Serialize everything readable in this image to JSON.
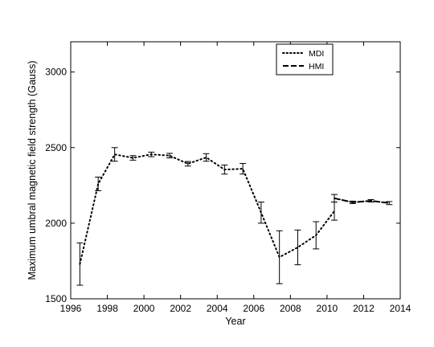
{
  "chart_data": {
    "type": "line",
    "title": "",
    "xlabel": "Year",
    "ylabel": "Maximum umbral magnetic field strength (Gauss)",
    "xlim": [
      1996,
      2014
    ],
    "ylim": [
      1500,
      3200
    ],
    "xticks": [
      1996,
      1998,
      2000,
      2002,
      2004,
      2006,
      2008,
      2010,
      2012,
      2014
    ],
    "yticks": [
      1500,
      2000,
      2500,
      3000
    ],
    "grid": false,
    "legend": "top-right",
    "series": [
      {
        "name": "MDI",
        "style": "dotted",
        "color": "#000000",
        "x": [
          1996.5,
          1997.5,
          1998.4,
          1999.4,
          2000.4,
          2001.4,
          2002.4,
          2003.4,
          2004.4,
          2005.4,
          2006.4,
          2007.4,
          2008.4,
          2009.4,
          2010.4
        ],
        "y": [
          1730,
          2260,
          2455,
          2432,
          2455,
          2447,
          2393,
          2435,
          2355,
          2360,
          2070,
          1775,
          1840,
          1920,
          2080
        ],
        "err": [
          140,
          45,
          45,
          15,
          15,
          15,
          15,
          25,
          30,
          35,
          70,
          175,
          115,
          90,
          60
        ]
      },
      {
        "name": "HMI",
        "style": "dashed",
        "color": "#000000",
        "x": [
          2010.4,
          2011.4,
          2012.4,
          2013.4
        ],
        "y": [
          2165,
          2138,
          2148,
          2133
        ],
        "err": [
          25,
          8,
          8,
          10
        ]
      }
    ]
  }
}
